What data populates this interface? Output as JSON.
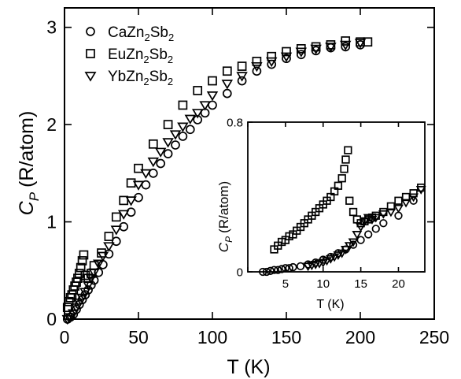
{
  "chart_data": [
    {
      "type": "scatter",
      "xlabel": "T (K)",
      "ylabel": "C",
      "ylabel_subscript": "P",
      "ylabel_unit": "(R/atom)",
      "xlim": [
        0,
        250
      ],
      "ylim": [
        0,
        3.2
      ],
      "x_ticks": [
        0,
        50,
        100,
        150,
        200,
        250
      ],
      "y_ticks": [
        0,
        1,
        2,
        3
      ],
      "grid": false,
      "legend_position": "top-left",
      "series": [
        {
          "name": "CaZn2Sb2",
          "label_parts": [
            "CaZn",
            "2",
            "Sb",
            "2"
          ],
          "marker": "circle",
          "x": [
            2,
            4,
            6,
            8,
            10,
            12,
            14,
            16,
            18,
            20,
            23,
            26,
            30,
            35,
            40,
            45,
            50,
            55,
            60,
            65,
            70,
            75,
            80,
            85,
            90,
            95,
            100,
            110,
            120,
            130,
            140,
            150,
            160,
            170,
            180,
            190,
            200
          ],
          "y": [
            0.0,
            0.02,
            0.05,
            0.1,
            0.15,
            0.2,
            0.25,
            0.3,
            0.35,
            0.4,
            0.48,
            0.56,
            0.67,
            0.8,
            0.95,
            1.1,
            1.25,
            1.38,
            1.5,
            1.6,
            1.7,
            1.79,
            1.88,
            1.95,
            2.05,
            2.12,
            2.2,
            2.32,
            2.45,
            2.55,
            2.62,
            2.68,
            2.72,
            2.76,
            2.79,
            2.8,
            2.82
          ]
        },
        {
          "name": "EuZn2Sb2",
          "label_parts": [
            "EuZn",
            "2",
            "Sb",
            "2"
          ],
          "marker": "square",
          "x": [
            2,
            3,
            4,
            5,
            6,
            7,
            8,
            9,
            10,
            11,
            12,
            13,
            14,
            16,
            18,
            20,
            25,
            30,
            35,
            40,
            45,
            50,
            60,
            70,
            80,
            90,
            100,
            110,
            120,
            130,
            140,
            150,
            160,
            170,
            180,
            190,
            200,
            205
          ],
          "y": [
            0.12,
            0.18,
            0.22,
            0.25,
            0.3,
            0.34,
            0.38,
            0.42,
            0.47,
            0.53,
            0.6,
            0.66,
            0.45,
            0.42,
            0.47,
            0.55,
            0.68,
            0.85,
            1.05,
            1.22,
            1.4,
            1.55,
            1.8,
            2.0,
            2.2,
            2.35,
            2.45,
            2.55,
            2.6,
            2.65,
            2.7,
            2.75,
            2.78,
            2.8,
            2.82,
            2.86,
            2.85,
            2.85
          ]
        },
        {
          "name": "YbZn2Sb2",
          "label_parts": [
            "YbZn",
            "2",
            "Sb",
            "2"
          ],
          "marker": "triangle-down",
          "x": [
            2,
            4,
            6,
            8,
            10,
            12,
            14,
            16,
            18,
            20,
            23,
            26,
            30,
            35,
            40,
            45,
            50,
            55,
            60,
            65,
            70,
            75,
            80,
            85,
            90,
            95,
            100,
            110,
            120,
            130,
            140,
            150,
            160,
            170,
            180,
            190,
            200
          ],
          "y": [
            0.0,
            0.02,
            0.06,
            0.12,
            0.17,
            0.22,
            0.28,
            0.35,
            0.42,
            0.48,
            0.57,
            0.65,
            0.75,
            0.92,
            1.08,
            1.22,
            1.38,
            1.5,
            1.62,
            1.72,
            1.82,
            1.9,
            1.98,
            2.06,
            2.12,
            2.2,
            2.3,
            2.42,
            2.5,
            2.6,
            2.65,
            2.7,
            2.75,
            2.78,
            2.8,
            2.82,
            2.84
          ]
        }
      ]
    },
    {
      "type": "scatter",
      "inset": true,
      "xlabel": "T (K)",
      "ylabel": "C",
      "ylabel_subscript": "P",
      "ylabel_unit": "(R/atom)",
      "xlim": [
        0,
        23.5
      ],
      "ylim": [
        0,
        0.8
      ],
      "x_ticks": [
        0,
        5,
        10,
        15,
        20
      ],
      "y_ticks": [
        0,
        0.8
      ],
      "y_tick_labels": [
        "0",
        "0.8"
      ],
      "series": [
        {
          "name": "CaZn2Sb2",
          "marker": "circle",
          "x": [
            2,
            2.5,
            3,
            3.5,
            4,
            4.5,
            5,
            5.5,
            6,
            7,
            8,
            9,
            10,
            11,
            12,
            13,
            14,
            15,
            16,
            17,
            18,
            20,
            22
          ],
          "y": [
            0.0,
            0.0,
            0.005,
            0.01,
            0.01,
            0.015,
            0.02,
            0.02,
            0.025,
            0.03,
            0.04,
            0.05,
            0.065,
            0.08,
            0.1,
            0.12,
            0.145,
            0.17,
            0.2,
            0.23,
            0.26,
            0.3,
            0.38
          ]
        },
        {
          "name": "EuZn2Sb2",
          "marker": "square",
          "x": [
            3.5,
            4,
            4.5,
            5,
            5.5,
            6,
            6.5,
            7,
            7.5,
            8,
            8.5,
            9,
            9.5,
            10,
            10.5,
            11,
            11.5,
            12,
            12.5,
            12.8,
            13,
            13.3,
            13.5,
            14,
            14.5,
            15,
            15.5,
            16,
            16.5,
            17,
            18,
            19,
            20,
            21,
            22,
            23
          ],
          "y": [
            0.12,
            0.14,
            0.16,
            0.17,
            0.19,
            0.2,
            0.22,
            0.24,
            0.26,
            0.28,
            0.3,
            0.32,
            0.34,
            0.36,
            0.38,
            0.4,
            0.43,
            0.46,
            0.5,
            0.55,
            0.6,
            0.65,
            0.38,
            0.32,
            0.28,
            0.26,
            0.27,
            0.28,
            0.29,
            0.3,
            0.32,
            0.35,
            0.38,
            0.4,
            0.42,
            0.45
          ]
        },
        {
          "name": "YbZn2Sb2",
          "marker": "triangle-down",
          "x": [
            8,
            8.5,
            9,
            9.5,
            10,
            10.5,
            11,
            11.5,
            12,
            12.5,
            13,
            13.5,
            14,
            14.5,
            15,
            15.5,
            16,
            16.5,
            17,
            18,
            19,
            20,
            21,
            22,
            23
          ],
          "y": [
            0.03,
            0.035,
            0.04,
            0.045,
            0.05,
            0.06,
            0.07,
            0.08,
            0.09,
            0.1,
            0.12,
            0.14,
            0.16,
            0.2,
            0.24,
            0.27,
            0.29,
            0.28,
            0.29,
            0.31,
            0.32,
            0.34,
            0.37,
            0.4,
            0.44
          ]
        }
      ]
    }
  ]
}
